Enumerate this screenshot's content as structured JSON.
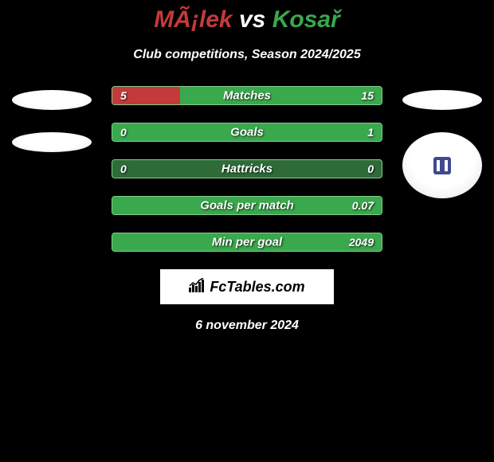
{
  "header": {
    "player1": "MÃ¡lek",
    "vs": "vs",
    "player2": "Kosař",
    "subtitle": "Club competitions, Season 2024/2025"
  },
  "colors": {
    "background": "#000000",
    "player1_color": "#c43a3a",
    "player2_color": "#3aa84d",
    "text": "#ffffff",
    "bar_border": "#7fcf8b",
    "bar_bg": "#2e6b38"
  },
  "stats": [
    {
      "label": "Matches",
      "left_value": "5",
      "right_value": "15",
      "left_pct": 25,
      "right_pct": 75
    },
    {
      "label": "Goals",
      "left_value": "0",
      "right_value": "1",
      "left_pct": 0,
      "right_pct": 100
    },
    {
      "label": "Hattricks",
      "left_value": "0",
      "right_value": "0",
      "left_pct": 0,
      "right_pct": 0
    },
    {
      "label": "Goals per match",
      "left_value": "",
      "right_value": "0.07",
      "left_pct": 0,
      "right_pct": 100
    },
    {
      "label": "Min per goal",
      "left_value": "",
      "right_value": "2049",
      "left_pct": 0,
      "right_pct": 100
    }
  ],
  "footer": {
    "brand": "FcTables.com",
    "date": "6 november 2024"
  }
}
